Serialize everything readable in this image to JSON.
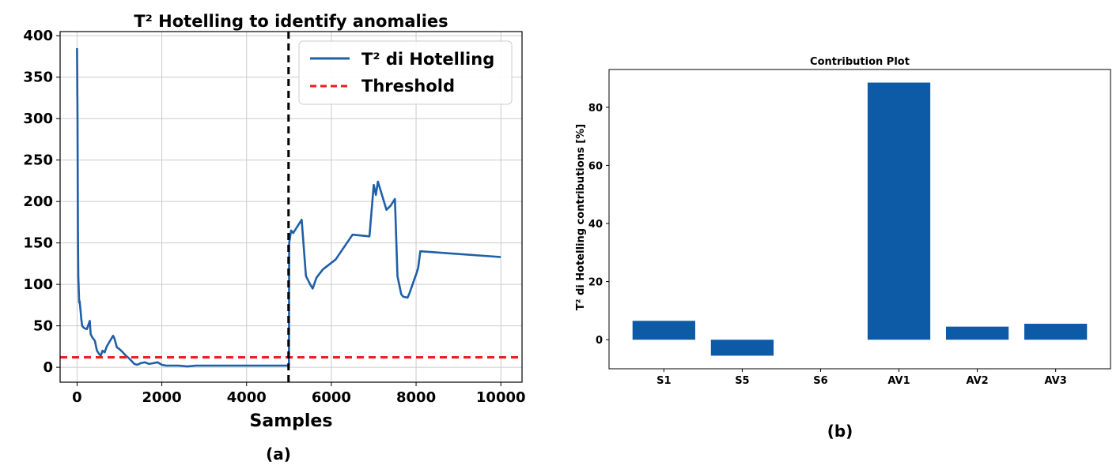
{
  "colors": {
    "line": "#1f5fa8",
    "threshold": "#ee1c1c",
    "bar": "#0d5aa7",
    "vline": "#000000",
    "grid": "#cccccc"
  },
  "panels": {
    "a_label": "(a)",
    "b_label": "(b)"
  },
  "chart_data": [
    {
      "type": "line",
      "title": "T² Hotelling to identify anomalies",
      "xlabel": "Samples",
      "ylabel": "",
      "xlim": [
        -400,
        10500
      ],
      "ylim": [
        -18,
        405
      ],
      "xticks": [
        0,
        2000,
        4000,
        6000,
        8000,
        10000
      ],
      "yticks": [
        0,
        50,
        100,
        150,
        200,
        250,
        300,
        350,
        400
      ],
      "grid": true,
      "legend": "top-right",
      "series": [
        {
          "name": "T² di Hotelling",
          "x": [
            0,
            10,
            20,
            30,
            50,
            60,
            80,
            100,
            120,
            150,
            180,
            230,
            300,
            320,
            360,
            420,
            470,
            520,
            560,
            600,
            650,
            700,
            780,
            850,
            880,
            940,
            1000,
            1080,
            1150,
            1200,
            1280,
            1350,
            1420,
            1500,
            1600,
            1700,
            1800,
            1900,
            2000,
            2100,
            2200,
            2400,
            2600,
            2800,
            3000,
            3200,
            3400,
            3600,
            3800,
            4000,
            4200,
            4400,
            4600,
            4800,
            4950,
            4990,
            5000,
            5005,
            5050,
            5100,
            5200,
            5300,
            5400,
            5500,
            5560,
            5650,
            5800,
            6100,
            6500,
            6900,
            7000,
            7050,
            7100,
            7300,
            7400,
            7500,
            7560,
            7650,
            7700,
            7800,
            7850,
            7950,
            8000,
            8050,
            8100,
            10000
          ],
          "values": [
            385,
            300,
            170,
            110,
            78,
            80,
            70,
            58,
            50,
            48,
            47,
            46,
            56,
            40,
            36,
            32,
            20,
            16,
            14,
            20,
            18,
            25,
            32,
            38,
            35,
            24,
            22,
            18,
            14,
            12,
            8,
            4,
            3,
            5,
            6,
            4,
            5,
            6,
            3,
            2,
            2,
            2,
            1,
            2,
            2,
            2,
            2,
            2,
            2,
            2,
            2,
            2,
            2,
            2,
            2,
            2,
            2,
            150,
            165,
            162,
            170,
            178,
            110,
            100,
            95,
            108,
            118,
            130,
            160,
            158,
            220,
            208,
            224,
            190,
            195,
            203,
            110,
            88,
            85,
            84,
            90,
            105,
            112,
            120,
            140,
            133
          ]
        },
        {
          "name": "Threshold",
          "constant": 12
        }
      ],
      "vertical_line_x": 4990
    },
    {
      "type": "bar",
      "title": "Contribution Plot",
      "xlabel": "",
      "ylabel": "T² di Hotelling contributions [%]",
      "categories": [
        "S1",
        "S5",
        "S6",
        "AV1",
        "AV2",
        "AV3"
      ],
      "values": [
        6.5,
        -5.5,
        0,
        88.5,
        4.5,
        5.5
      ],
      "ylim": [
        -10,
        93
      ],
      "yticks": [
        0,
        20,
        40,
        60,
        80
      ],
      "grid": false
    }
  ]
}
